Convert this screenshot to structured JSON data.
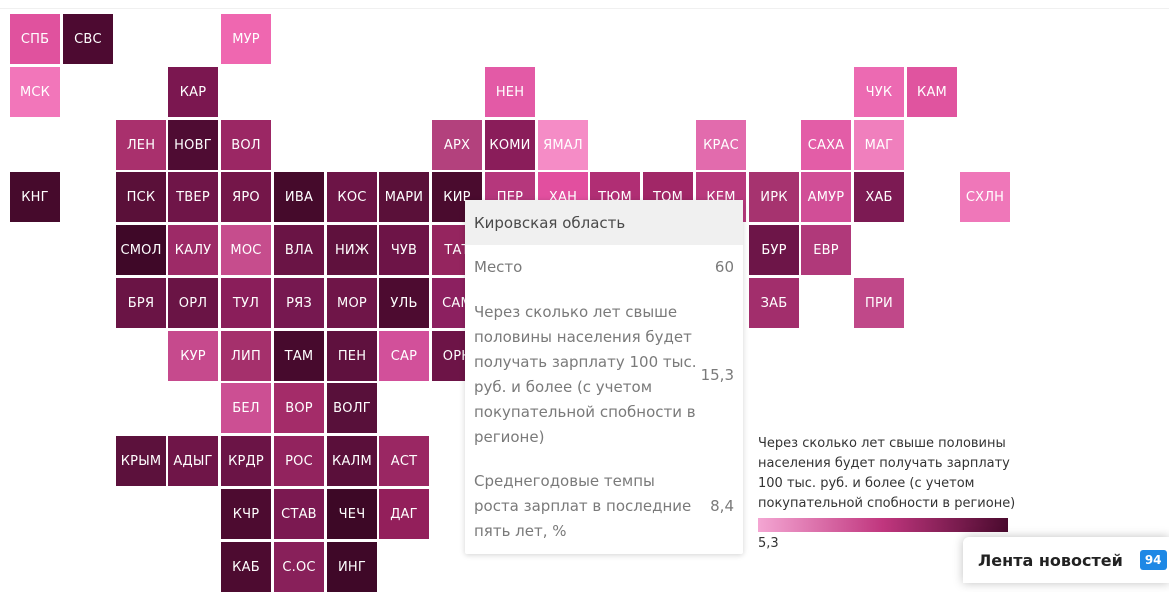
{
  "map": {
    "tiles": [
      {
        "label": "СПБ",
        "col": 0,
        "row": 0,
        "color": "#e0529e"
      },
      {
        "label": "СВС",
        "col": 1,
        "row": 0,
        "color": "#4d0a31"
      },
      {
        "label": "МУР",
        "col": 4,
        "row": 0,
        "color": "#ef67b0"
      },
      {
        "label": "МСК",
        "col": 0,
        "row": 1,
        "color": "#f276ba"
      },
      {
        "label": "КАР",
        "col": 3,
        "row": 1,
        "color": "#7b1750"
      },
      {
        "label": "НЕН",
        "col": 9,
        "row": 1,
        "color": "#e35aa6"
      },
      {
        "label": "ЧУК",
        "col": 16,
        "row": 1,
        "color": "#ec6ab2"
      },
      {
        "label": "КАМ",
        "col": 17,
        "row": 1,
        "color": "#e0549f"
      },
      {
        "label": "ЛЕН",
        "col": 2,
        "row": 2,
        "color": "#a9306d"
      },
      {
        "label": "НОВГ",
        "col": 3,
        "row": 2,
        "color": "#4f0c33"
      },
      {
        "label": "ВОЛ",
        "col": 4,
        "row": 2,
        "color": "#9b2764"
      },
      {
        "label": "АРХ",
        "col": 8,
        "row": 2,
        "color": "#b3417d"
      },
      {
        "label": "КОМИ",
        "col": 9,
        "row": 2,
        "color": "#8a1d5a"
      },
      {
        "label": "ЯМАЛ",
        "col": 10,
        "row": 2,
        "color": "#f58cc6"
      },
      {
        "label": "КРАС",
        "col": 13,
        "row": 2,
        "color": "#e26bad"
      },
      {
        "label": "САХА",
        "col": 15,
        "row": 2,
        "color": "#e35da7"
      },
      {
        "label": "МАГ",
        "col": 16,
        "row": 2,
        "color": "#f07fbd"
      },
      {
        "label": "КНГ",
        "col": 0,
        "row": 3,
        "color": "#460a2c"
      },
      {
        "label": "ПСК",
        "col": 2,
        "row": 3,
        "color": "#5a1039"
      },
      {
        "label": "ТВЕР",
        "col": 3,
        "row": 3,
        "color": "#6f1548"
      },
      {
        "label": "ЯРО",
        "col": 4,
        "row": 3,
        "color": "#741649"
      },
      {
        "label": "ИВА",
        "col": 5,
        "row": 3,
        "color": "#450a2b"
      },
      {
        "label": "КОС",
        "col": 6,
        "row": 3,
        "color": "#6c1446"
      },
      {
        "label": "МАРИ",
        "col": 7,
        "row": 3,
        "color": "#5a1039"
      },
      {
        "label": "КИР",
        "col": 8,
        "row": 3,
        "color": "#4a0b2e"
      },
      {
        "label": "ПЕР",
        "col": 9,
        "row": 3,
        "color": "#b5377c"
      },
      {
        "label": "ХАН",
        "col": 10,
        "row": 3,
        "color": "#e24f9f"
      },
      {
        "label": "ТЮМ",
        "col": 11,
        "row": 3,
        "color": "#b02e74"
      },
      {
        "label": "ТОМ",
        "col": 12,
        "row": 3,
        "color": "#a12767"
      },
      {
        "label": "КЕМ",
        "col": 13,
        "row": 3,
        "color": "#b83a7d"
      },
      {
        "label": "ИРК",
        "col": 14,
        "row": 3,
        "color": "#a6336f"
      },
      {
        "label": "АМУР",
        "col": 15,
        "row": 3,
        "color": "#d14e97"
      },
      {
        "label": "ХАБ",
        "col": 16,
        "row": 3,
        "color": "#7c1a53"
      },
      {
        "label": "СХЛН",
        "col": 18,
        "row": 3,
        "color": "#ef77b9"
      },
      {
        "label": "СМОЛ",
        "col": 2,
        "row": 4,
        "color": "#3f0828"
      },
      {
        "label": "КАЛУ",
        "col": 3,
        "row": 4,
        "color": "#9d2a67"
      },
      {
        "label": "МОС",
        "col": 4,
        "row": 4,
        "color": "#c64d8d"
      },
      {
        "label": "ВЛА",
        "col": 5,
        "row": 4,
        "color": "#6a1445"
      },
      {
        "label": "НИЖ",
        "col": 6,
        "row": 4,
        "color": "#5f113d"
      },
      {
        "label": "ЧУВ",
        "col": 7,
        "row": 4,
        "color": "#6d1447"
      },
      {
        "label": "ТАТ",
        "col": 8,
        "row": 4,
        "color": "#95255f"
      },
      {
        "label": "БУР",
        "col": 14,
        "row": 4,
        "color": "#6d1548"
      },
      {
        "label": "ЕВР",
        "col": 15,
        "row": 4,
        "color": "#b0397a"
      },
      {
        "label": "БРЯ",
        "col": 2,
        "row": 5,
        "color": "#6a1445"
      },
      {
        "label": "ОРЛ",
        "col": 3,
        "row": 5,
        "color": "#6a1445"
      },
      {
        "label": "ТУЛ",
        "col": 4,
        "row": 5,
        "color": "#8a1e5a"
      },
      {
        "label": "РЯЗ",
        "col": 5,
        "row": 5,
        "color": "#761850"
      },
      {
        "label": "МОР",
        "col": 6,
        "row": 5,
        "color": "#6f1548"
      },
      {
        "label": "УЛЬ",
        "col": 7,
        "row": 5,
        "color": "#4d0b30"
      },
      {
        "label": "САМ",
        "col": 8,
        "row": 5,
        "color": "#8c2060"
      },
      {
        "label": "ЗАБ",
        "col": 14,
        "row": 5,
        "color": "#a22e6c"
      },
      {
        "label": "ПРИ",
        "col": 16,
        "row": 5,
        "color": "#c04889"
      },
      {
        "label": "КУР",
        "col": 3,
        "row": 6,
        "color": "#c64a8d"
      },
      {
        "label": "ЛИП",
        "col": 4,
        "row": 6,
        "color": "#a5306c"
      },
      {
        "label": "ТАМ",
        "col": 5,
        "row": 6,
        "color": "#470a2d"
      },
      {
        "label": "ПЕН",
        "col": 6,
        "row": 6,
        "color": "#5f113e"
      },
      {
        "label": "САР",
        "col": 7,
        "row": 6,
        "color": "#d2509a"
      },
      {
        "label": "ОРН",
        "col": 8,
        "row": 6,
        "color": "#6d1447"
      },
      {
        "label": "БЕЛ",
        "col": 4,
        "row": 7,
        "color": "#cc4f93"
      },
      {
        "label": "ВОР",
        "col": 5,
        "row": 7,
        "color": "#a42c69"
      },
      {
        "label": "ВОЛГ",
        "col": 6,
        "row": 7,
        "color": "#58103a"
      },
      {
        "label": "КРЫМ",
        "col": 2,
        "row": 8,
        "color": "#5c113c"
      },
      {
        "label": "АДЫГ",
        "col": 3,
        "row": 8,
        "color": "#6f1548"
      },
      {
        "label": "КРДР",
        "col": 4,
        "row": 8,
        "color": "#6b1446"
      },
      {
        "label": "РОС",
        "col": 5,
        "row": 8,
        "color": "#92235e"
      },
      {
        "label": "КАЛМ",
        "col": 6,
        "row": 8,
        "color": "#5a0f3a"
      },
      {
        "label": "АСТ",
        "col": 7,
        "row": 8,
        "color": "#9a2763"
      },
      {
        "label": "КЧР",
        "col": 4,
        "row": 9,
        "color": "#4d0b30"
      },
      {
        "label": "СТАВ",
        "col": 5,
        "row": 9,
        "color": "#7b1951"
      },
      {
        "label": "ЧЕЧ",
        "col": 6,
        "row": 9,
        "color": "#3d0826"
      },
      {
        "label": "ДАГ",
        "col": 7,
        "row": 9,
        "color": "#931f5b"
      },
      {
        "label": "КАБ",
        "col": 4,
        "row": 10,
        "color": "#4d0b30"
      },
      {
        "label": "С.ОС",
        "col": 5,
        "row": 10,
        "color": "#88205a"
      },
      {
        "label": "ИНГ",
        "col": 6,
        "row": 10,
        "color": "#3f0828"
      }
    ]
  },
  "tooltip": {
    "region": "Кировская область",
    "rows": [
      {
        "label": "Место",
        "value": "60"
      },
      {
        "label": "Через сколько лет свыше половины населения будет получать зарплату 100 тыс. руб. и более (с учетом покупательной спобности в регионе)",
        "value": "15,3"
      },
      {
        "label": "Среднегодовые темпы роста зарплат в последние пять лет, %",
        "value": "8,4"
      }
    ]
  },
  "legend": {
    "title": "Через сколько лет свыше половины населения будет получать зарплату 100 тыс. руб. и более (с учетом покупательной спобности в регионе)",
    "min": "5,3"
  },
  "news": {
    "title": "Лента новостей",
    "count": "94"
  }
}
